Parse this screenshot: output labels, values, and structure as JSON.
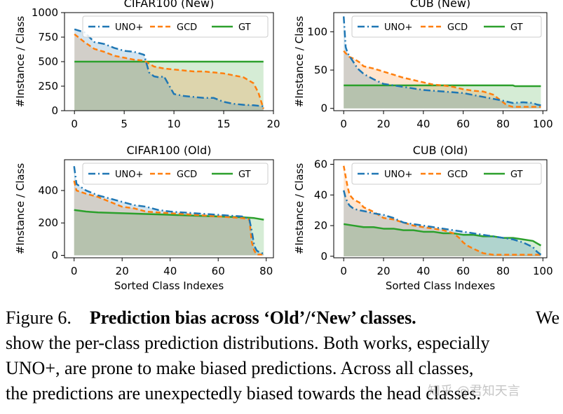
{
  "colors": {
    "uno": "#1f77b4",
    "gcd": "#ff7f0e",
    "gt": "#2ca02c"
  },
  "chart_data": [
    {
      "type": "line",
      "title": "CIFAR100 (New)",
      "xlabel": "",
      "ylabel": "#Instance / Class",
      "xlim": [
        -1,
        20
      ],
      "ylim": [
        0,
        1000
      ],
      "xticks": [
        0,
        5,
        10,
        15,
        20
      ],
      "yticks": [
        0,
        250,
        500,
        750,
        1000
      ],
      "legend": [
        "UNO+",
        "GCD",
        "GT"
      ],
      "series": [
        {
          "name": "UNO+",
          "x": [
            0,
            1,
            2,
            3,
            4,
            5,
            6,
            7,
            7.5,
            8,
            8.5,
            9,
            10,
            11,
            12,
            13,
            14,
            15,
            16,
            17,
            18,
            19
          ],
          "values": [
            830,
            800,
            700,
            680,
            640,
            610,
            600,
            570,
            390,
            350,
            340,
            350,
            170,
            150,
            140,
            130,
            130,
            90,
            70,
            60,
            55,
            45
          ]
        },
        {
          "name": "GCD",
          "x": [
            0,
            1,
            2,
            3,
            4,
            5,
            6,
            7,
            8,
            9,
            10,
            11,
            12,
            13,
            14,
            15,
            16,
            17,
            18,
            18.5,
            19
          ],
          "values": [
            780,
            700,
            630,
            600,
            560,
            540,
            520,
            510,
            450,
            430,
            420,
            410,
            400,
            400,
            390,
            380,
            360,
            340,
            280,
            180,
            20
          ]
        },
        {
          "name": "GT",
          "x": [
            0,
            19
          ],
          "values": [
            500,
            500
          ]
        }
      ]
    },
    {
      "type": "line",
      "title": "CUB (New)",
      "xlabel": "",
      "ylabel": "#Instance / Class",
      "xlim": [
        -5,
        102
      ],
      "ylim": [
        -3,
        125
      ],
      "xticks": [
        0,
        20,
        40,
        60,
        80,
        100
      ],
      "yticks": [
        0,
        50,
        100
      ],
      "legend": [
        "UNO+",
        "GCD",
        "GT"
      ],
      "series": [
        {
          "name": "UNO+",
          "x": [
            0,
            1,
            2,
            3,
            5,
            7,
            10,
            15,
            20,
            25,
            30,
            35,
            40,
            50,
            60,
            70,
            80,
            85,
            90,
            95,
            97,
            99
          ],
          "values": [
            120,
            80,
            72,
            68,
            60,
            52,
            45,
            38,
            32,
            30,
            28,
            26,
            24,
            22,
            20,
            15,
            10,
            7,
            8,
            7,
            5,
            4
          ]
        },
        {
          "name": "GCD",
          "x": [
            0,
            1,
            3,
            5,
            8,
            10,
            15,
            20,
            25,
            30,
            35,
            40,
            45,
            50,
            55,
            60,
            65,
            70,
            75,
            78,
            80,
            82,
            85,
            90,
            95,
            99
          ],
          "values": [
            75,
            72,
            67,
            65,
            60,
            55,
            52,
            48,
            44,
            40,
            37,
            34,
            31,
            30,
            28,
            25,
            23,
            22,
            18,
            12,
            8,
            4,
            2,
            2,
            2,
            2
          ]
        },
        {
          "name": "GT",
          "x": [
            0,
            85,
            86,
            99
          ],
          "values": [
            30,
            30,
            29,
            29
          ]
        }
      ]
    },
    {
      "type": "line",
      "title": "CIFAR100 (Old)",
      "xlabel": "Sorted Class Indexes",
      "ylabel": "#Instance / Class",
      "xlim": [
        -4,
        83
      ],
      "ylim": [
        -15,
        590
      ],
      "xticks": [
        0,
        20,
        40,
        60,
        80
      ],
      "yticks": [
        0,
        200,
        400
      ],
      "legend": [
        "UNO+",
        "GCD",
        "GT"
      ],
      "series": [
        {
          "name": "UNO+",
          "x": [
            0,
            1,
            3,
            5,
            10,
            15,
            20,
            25,
            30,
            35,
            40,
            45,
            50,
            55,
            60,
            65,
            70,
            72,
            73,
            74,
            75,
            76,
            77,
            78,
            79
          ],
          "values": [
            550,
            440,
            420,
            400,
            370,
            350,
            330,
            310,
            300,
            280,
            270,
            265,
            260,
            255,
            250,
            245,
            240,
            230,
            220,
            150,
            60,
            30,
            20,
            15,
            10
          ]
        },
        {
          "name": "GCD",
          "x": [
            0,
            1,
            3,
            5,
            10,
            15,
            20,
            25,
            30,
            35,
            40,
            45,
            50,
            55,
            60,
            65,
            70,
            72,
            73,
            74,
            75,
            76,
            77,
            79
          ],
          "values": [
            460,
            400,
            390,
            380,
            360,
            330,
            300,
            290,
            270,
            265,
            260,
            255,
            250,
            245,
            240,
            235,
            230,
            225,
            220,
            80,
            30,
            5,
            5,
            5
          ]
        },
        {
          "name": "GT",
          "x": [
            0,
            5,
            10,
            20,
            30,
            40,
            50,
            60,
            70,
            75,
            79
          ],
          "values": [
            280,
            270,
            265,
            260,
            255,
            250,
            245,
            240,
            235,
            230,
            220
          ]
        }
      ]
    },
    {
      "type": "line",
      "title": "CUB (Old)",
      "xlabel": "Sorted Class Indexes",
      "ylabel": "#Instance / Class",
      "xlim": [
        -5,
        102
      ],
      "ylim": [
        -1,
        63
      ],
      "xticks": [
        0,
        20,
        40,
        60,
        80,
        100
      ],
      "yticks": [
        0,
        20,
        40,
        60
      ],
      "legend": [
        "UNO+",
        "GCD",
        "GT"
      ],
      "series": [
        {
          "name": "UNO+",
          "x": [
            0,
            1,
            2,
            3,
            5,
            8,
            12,
            15,
            20,
            25,
            30,
            35,
            40,
            45,
            50,
            55,
            60,
            65,
            70,
            75,
            80,
            85,
            90,
            95,
            97,
            99
          ],
          "values": [
            43,
            38,
            35,
            33,
            31,
            30,
            29,
            28,
            27,
            25,
            22,
            21,
            20,
            19,
            18,
            17,
            16,
            15,
            14,
            13,
            12,
            11,
            9,
            6,
            3,
            1
          ]
        },
        {
          "name": "GCD",
          "x": [
            0,
            1,
            2,
            3,
            5,
            8,
            10,
            15,
            20,
            25,
            30,
            35,
            40,
            45,
            50,
            55,
            58,
            60,
            62,
            65,
            70,
            75,
            80,
            85,
            90,
            95,
            99
          ],
          "values": [
            59,
            52,
            45,
            40,
            37,
            35,
            32,
            29,
            25,
            24,
            22,
            20,
            19,
            18,
            17,
            15,
            12,
            9,
            7,
            5,
            2,
            1,
            1,
            1,
            1,
            1,
            1
          ]
        },
        {
          "name": "GT",
          "x": [
            0,
            5,
            10,
            15,
            20,
            25,
            30,
            35,
            40,
            45,
            50,
            55,
            60,
            65,
            70,
            75,
            80,
            85,
            90,
            95,
            99
          ],
          "values": [
            21,
            20,
            19,
            19,
            18,
            18,
            17,
            17,
            16,
            16,
            15,
            15,
            14,
            14,
            13,
            13,
            12,
            12,
            11,
            10,
            7
          ]
        }
      ]
    }
  ],
  "caption": {
    "label": "Figure 6.",
    "bold": "Prediction bias across ‘Old’/‘New’ classes.",
    "line1_end": "We",
    "line2": "show the per-class prediction distributions. Both works, especially",
    "line3": "UNO+, are prone to make biased predictions.  Across all classes,",
    "line4": "the predictions are unexpectedly biased towards the head classes."
  },
  "watermark": "知乎 @君知天言"
}
